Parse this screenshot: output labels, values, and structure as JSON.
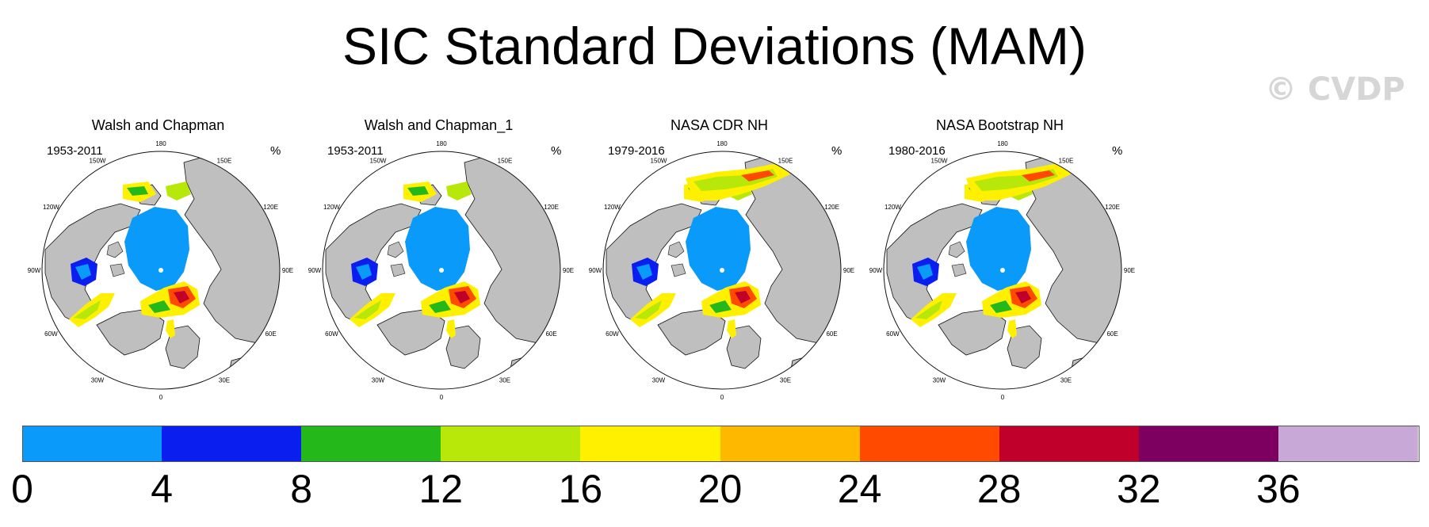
{
  "title": "SIC Standard Deviations (MAM)",
  "watermark": "© CVDP",
  "colors": {
    "land": "#bfbfbf",
    "ocean": "#ffffff",
    "c0": "#0a9bfa",
    "c4": "#0a1ef0",
    "c8": "#25b81a",
    "c12": "#b8e80a",
    "c16": "#fff000",
    "c20": "#ffb800",
    "c24": "#ff4a00",
    "c28": "#c0002a",
    "c32": "#7d0060",
    "c36": "#c8a8d6"
  },
  "panels": [
    {
      "title": "Walsh and Chapman",
      "period": "1953-2011",
      "unit": "%"
    },
    {
      "title": "Walsh and Chapman_1",
      "period": "1953-2011",
      "unit": "%"
    },
    {
      "title": "NASA CDR NH",
      "period": "1979-2016",
      "unit": "%"
    },
    {
      "title": "NASA Bootstrap NH",
      "period": "1980-2016",
      "unit": "%"
    }
  ],
  "lon_labels": [
    "180",
    "150E",
    "120E",
    "90E",
    "60E",
    "30E",
    "0",
    "30W",
    "60W",
    "90W",
    "120W",
    "150W"
  ],
  "colorbar": {
    "levels": [
      "0",
      "4",
      "8",
      "12",
      "16",
      "20",
      "24",
      "28",
      "32",
      "36"
    ],
    "colors": [
      "#0a9bfa",
      "#0a1ef0",
      "#25b81a",
      "#b8e80a",
      "#fff000",
      "#ffb800",
      "#ff4a00",
      "#c0002a",
      "#7d0060",
      "#c8a8d6"
    ]
  }
}
